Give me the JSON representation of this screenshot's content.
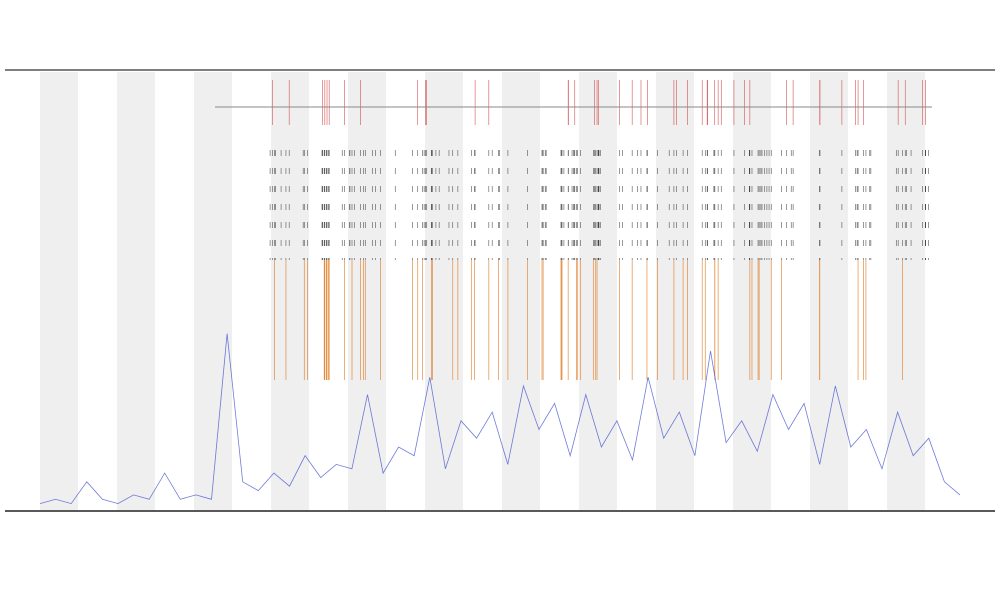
{
  "chart_data": {
    "type": "line",
    "x": [
      0,
      1,
      2,
      3,
      4,
      5,
      6,
      7,
      8,
      9,
      10,
      11,
      12,
      13,
      14,
      15,
      16,
      17,
      18,
      19,
      20,
      21,
      22,
      23,
      24,
      25,
      26,
      27,
      28,
      29,
      30,
      31,
      32,
      33,
      34,
      35,
      36,
      37,
      38,
      39,
      40,
      41,
      42,
      43,
      44,
      45,
      46,
      47,
      48,
      49,
      50,
      51,
      52,
      53,
      54,
      55,
      56,
      57,
      58,
      59
    ],
    "series": [
      {
        "color": "#3344cc",
        "values": [
          1,
          2,
          1,
          6,
          2,
          1,
          3,
          2,
          8,
          2,
          3,
          2,
          40,
          6,
          4,
          8,
          5,
          12,
          7,
          10,
          9,
          26,
          8,
          14,
          12,
          30,
          9,
          20,
          16,
          22,
          10,
          28,
          18,
          24,
          12,
          26,
          14,
          20,
          11,
          30,
          16,
          22,
          12,
          36,
          15,
          20,
          13,
          26,
          18,
          24,
          10,
          28,
          14,
          18,
          9,
          22,
          12,
          16,
          6,
          3
        ]
      }
    ],
    "xlim": [
      0,
      59
    ],
    "ylim": [
      0,
      100
    ]
  }
}
